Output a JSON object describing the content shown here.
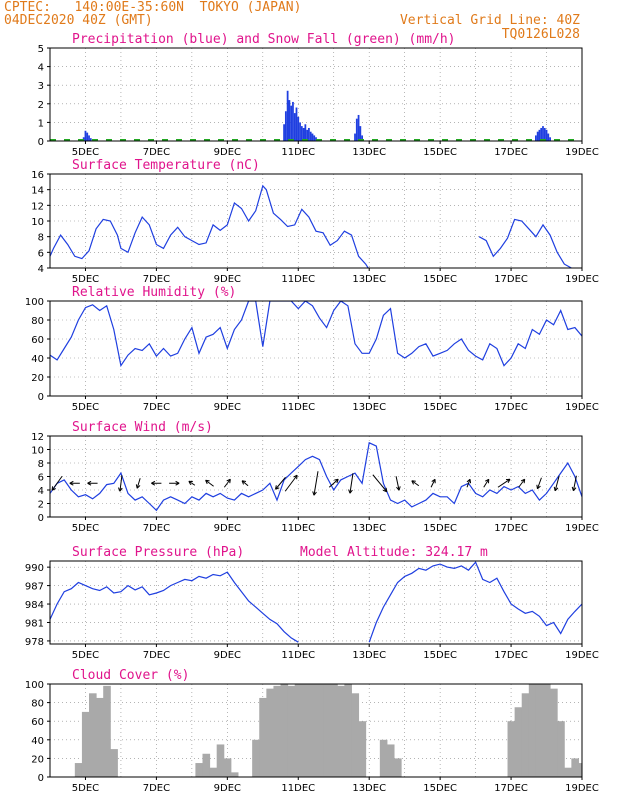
{
  "header": {
    "line1_left": "CPTEC:   140:00E-35:60N  TOKYO (JAPAN)",
    "line2_left": "04DEC2020 40Z (GMT)",
    "line2_right": "Vertical Grid Line: 40Z",
    "line3_right": "TQ0126L028"
  },
  "colors": {
    "header": "#e07a1a",
    "title": "#e0148c",
    "line": "#1f3fe0",
    "snow": "#22a822",
    "cloud": "#a9a9a9"
  },
  "x_ticks": [
    "5DEC",
    "7DEC",
    "9DEC",
    "11DEC",
    "13DEC",
    "15DEC",
    "17DEC",
    "19DEC"
  ],
  "chart_data": [
    {
      "type": "bar",
      "title": "Precipitation (blue) and Snow Fall (green) (mm/h)",
      "ylim": [
        0,
        5
      ],
      "yticks": [
        "0",
        "1",
        "2",
        "3",
        "4",
        "5"
      ],
      "series": [
        {
          "name": "Precipitation",
          "values": [
            {
              "day": 4.95,
              "v": 0.2
            },
            {
              "day": 5.0,
              "v": 0.55
            },
            {
              "day": 5.05,
              "v": 0.45
            },
            {
              "day": 5.1,
              "v": 0.3
            },
            {
              "day": 5.15,
              "v": 0.15
            },
            {
              "day": 10.6,
              "v": 0.9
            },
            {
              "day": 10.65,
              "v": 1.6
            },
            {
              "day": 10.7,
              "v": 2.7
            },
            {
              "day": 10.75,
              "v": 2.2
            },
            {
              "day": 10.8,
              "v": 1.9
            },
            {
              "day": 10.85,
              "v": 2.1
            },
            {
              "day": 10.9,
              "v": 1.5
            },
            {
              "day": 10.95,
              "v": 1.8
            },
            {
              "day": 11.0,
              "v": 1.3
            },
            {
              "day": 11.05,
              "v": 1.0
            },
            {
              "day": 11.1,
              "v": 0.8
            },
            {
              "day": 11.15,
              "v": 0.7
            },
            {
              "day": 11.2,
              "v": 0.9
            },
            {
              "day": 11.25,
              "v": 0.6
            },
            {
              "day": 11.3,
              "v": 0.7
            },
            {
              "day": 11.35,
              "v": 0.5
            },
            {
              "day": 11.4,
              "v": 0.4
            },
            {
              "day": 11.45,
              "v": 0.3
            },
            {
              "day": 11.5,
              "v": 0.2
            },
            {
              "day": 12.6,
              "v": 0.4
            },
            {
              "day": 12.65,
              "v": 1.2
            },
            {
              "day": 12.7,
              "v": 1.4
            },
            {
              "day": 12.75,
              "v": 0.8
            },
            {
              "day": 12.8,
              "v": 0.3
            },
            {
              "day": 17.7,
              "v": 0.3
            },
            {
              "day": 17.75,
              "v": 0.5
            },
            {
              "day": 17.8,
              "v": 0.6
            },
            {
              "day": 17.85,
              "v": 0.7
            },
            {
              "day": 17.9,
              "v": 0.8
            },
            {
              "day": 17.95,
              "v": 0.7
            },
            {
              "day": 18.0,
              "v": 0.6
            },
            {
              "day": 18.05,
              "v": 0.4
            },
            {
              "day": 18.1,
              "v": 0.2
            }
          ]
        },
        {
          "name": "Snow Fall",
          "values": []
        }
      ]
    },
    {
      "type": "line",
      "title": "Surface Temperature (nC)",
      "ylim": [
        4,
        16
      ],
      "yticks": [
        "4",
        "6",
        "8",
        "10",
        "12",
        "14",
        "16"
      ],
      "x": [
        4,
        4.1,
        4.3,
        4.5,
        4.7,
        4.9,
        5.1,
        5.3,
        5.5,
        5.7,
        5.9,
        6.0,
        6.2,
        6.4,
        6.6,
        6.8,
        7.0,
        7.2,
        7.4,
        7.6,
        7.8,
        8.0,
        8.2,
        8.4,
        8.6,
        8.8,
        9.0,
        9.2,
        9.4,
        9.6,
        9.8,
        10.0,
        10.1,
        10.3,
        10.5,
        10.7,
        10.9,
        11.1,
        11.3,
        11.5,
        11.7,
        11.9,
        12.1,
        12.3,
        12.5,
        12.7,
        12.9,
        13.0
      ],
      "values": [
        5.5,
        6.5,
        8.2,
        7.0,
        5.5,
        5.2,
        6.2,
        9.0,
        10.2,
        10.0,
        8.2,
        6.5,
        6.0,
        8.5,
        10.5,
        9.5,
        7.0,
        6.5,
        8.2,
        9.2,
        8.0,
        7.5,
        7.0,
        7.2,
        9.5,
        8.8,
        9.5,
        12.3,
        11.6,
        10.0,
        11.3,
        14.5,
        14.0,
        11.0,
        10.2,
        9.3,
        9.5,
        11.5,
        10.5,
        8.7,
        8.5,
        6.9,
        7.5,
        8.7,
        8.2,
        5.5,
        4.5,
        3.8
      ],
      "segments": [
        {
          "x": [
            16.1,
            16.3,
            16.5,
            16.7,
            16.9,
            17.1,
            17.3,
            17.5,
            17.7,
            17.9,
            18.1,
            18.3,
            18.5,
            18.7
          ],
          "values": [
            8.0,
            7.5,
            5.5,
            6.5,
            7.8,
            10.2,
            10.0,
            9.0,
            8.0,
            9.5,
            8.2,
            6.0,
            4.5,
            4.0
          ]
        }
      ]
    },
    {
      "type": "line",
      "title": "Relative Humidity (%)",
      "ylim": [
        0,
        100
      ],
      "yticks": [
        "0",
        "20",
        "40",
        "60",
        "80",
        "100"
      ],
      "x": [
        4,
        4.2,
        4.4,
        4.6,
        4.8,
        5.0,
        5.2,
        5.4,
        5.6,
        5.8,
        6.0,
        6.2,
        6.4,
        6.6,
        6.8,
        7.0,
        7.2,
        7.4,
        7.6,
        7.8,
        8.0,
        8.2,
        8.4,
        8.6,
        8.8,
        9.0,
        9.2,
        9.4,
        9.6,
        9.8,
        10.0,
        10.2,
        10.4,
        10.6,
        10.8,
        11.0,
        11.2,
        11.4,
        11.6,
        11.8,
        12.0,
        12.2,
        12.4,
        12.6,
        12.8,
        13.0,
        13.2,
        13.4,
        13.6,
        13.8,
        14.0,
        14.2,
        14.4,
        14.6,
        14.8,
        15.0,
        15.2,
        15.4,
        15.6,
        15.8,
        16.0,
        16.2,
        16.4,
        16.6,
        16.8,
        17.0,
        17.2,
        17.4,
        17.6,
        17.8,
        18.0,
        18.2,
        18.4,
        18.6,
        18.8,
        19.0
      ],
      "values": [
        43,
        38,
        50,
        62,
        80,
        93,
        96,
        90,
        95,
        70,
        32,
        43,
        50,
        48,
        55,
        42,
        50,
        42,
        45,
        60,
        72,
        45,
        62,
        65,
        72,
        50,
        70,
        80,
        100,
        100,
        52,
        100,
        100,
        100,
        100,
        92,
        100,
        95,
        82,
        72,
        90,
        100,
        95,
        55,
        45,
        45,
        60,
        85,
        92,
        45,
        40,
        45,
        52,
        55,
        42,
        45,
        48,
        55,
        60,
        48,
        42,
        38,
        55,
        50,
        32,
        40,
        55,
        50,
        70,
        65,
        80,
        75,
        90,
        70,
        72,
        63
      ]
    },
    {
      "type": "line",
      "title": "Surface Wind (m/s)",
      "ylim": [
        0,
        12
      ],
      "yticks": [
        "0",
        "2",
        "4",
        "6",
        "8",
        "10",
        "12"
      ],
      "x": [
        4,
        4.2,
        4.4,
        4.6,
        4.8,
        5.0,
        5.2,
        5.4,
        5.6,
        5.8,
        6.0,
        6.2,
        6.4,
        6.6,
        6.8,
        7.0,
        7.2,
        7.4,
        7.6,
        7.8,
        8.0,
        8.2,
        8.4,
        8.6,
        8.8,
        9.0,
        9.2,
        9.4,
        9.6,
        9.8,
        10.0,
        10.2,
        10.4,
        10.6,
        10.8,
        11.0,
        11.2,
        11.4,
        11.6,
        11.8,
        12.0,
        12.2,
        12.4,
        12.6,
        12.8,
        13.0,
        13.2,
        13.4,
        13.6,
        13.8,
        14.0,
        14.2,
        14.4,
        14.6,
        14.8,
        15.0,
        15.2,
        15.4,
        15.6,
        15.8,
        16.0,
        16.2,
        16.4,
        16.6,
        16.8,
        17.0,
        17.2,
        17.4,
        17.6,
        17.8,
        18.0,
        18.2,
        18.4,
        18.6,
        18.8,
        19.0
      ],
      "values": [
        3.5,
        5.0,
        5.5,
        4.0,
        3.0,
        3.3,
        2.7,
        3.5,
        4.8,
        5.0,
        6.5,
        3.5,
        2.5,
        3.0,
        2.0,
        1.0,
        2.5,
        3.0,
        2.5,
        2.0,
        3.0,
        2.5,
        3.5,
        3.0,
        3.5,
        2.8,
        2.5,
        3.5,
        3.0,
        3.5,
        4.0,
        5.0,
        2.5,
        5.5,
        6.5,
        7.5,
        8.5,
        9.0,
        8.5,
        6.0,
        4.0,
        5.5,
        6.0,
        6.5,
        5.0,
        11.0,
        10.5,
        5.0,
        2.5,
        2.0,
        2.5,
        1.5,
        2.0,
        2.5,
        3.5,
        3.0,
        3.0,
        2.0,
        4.5,
        5.0,
        3.5,
        3.0,
        4.0,
        3.5,
        4.5,
        4.0,
        4.5,
        3.5,
        4.0,
        2.5,
        3.5,
        5.0,
        6.5,
        8.0,
        6.0,
        3.0
      ],
      "arrows": [
        {
          "day": 4.2,
          "dx": -1,
          "dy": 1.4
        },
        {
          "day": 4.7,
          "dx": -1,
          "dy": 0
        },
        {
          "day": 5.2,
          "dx": -1,
          "dy": 0
        },
        {
          "day": 6.0,
          "dx": -0.2,
          "dy": 1.6
        },
        {
          "day": 6.5,
          "dx": -0.3,
          "dy": 1.0
        },
        {
          "day": 7.0,
          "dx": -1,
          "dy": 0
        },
        {
          "day": 7.5,
          "dx": 1,
          "dy": 0
        },
        {
          "day": 8.0,
          "dx": -0.6,
          "dy": -0.4
        },
        {
          "day": 8.5,
          "dx": -0.8,
          "dy": -0.6
        },
        {
          "day": 9.0,
          "dx": 0.6,
          "dy": -0.8
        },
        {
          "day": 9.5,
          "dx": -0.6,
          "dy": -0.5
        },
        {
          "day": 10.5,
          "dx": -1,
          "dy": 1.2
        },
        {
          "day": 10.8,
          "dx": 1.2,
          "dy": -1.6
        },
        {
          "day": 11.5,
          "dx": -0.4,
          "dy": 2.4
        },
        {
          "day": 12.0,
          "dx": 0.9,
          "dy": -0.8
        },
        {
          "day": 12.5,
          "dx": -0.3,
          "dy": 2.0
        },
        {
          "day": 13.3,
          "dx": 1.4,
          "dy": 1.7
        },
        {
          "day": 13.8,
          "dx": 0.3,
          "dy": 1.4
        },
        {
          "day": 14.3,
          "dx": -0.7,
          "dy": -0.5
        },
        {
          "day": 14.8,
          "dx": 0.4,
          "dy": -0.8
        },
        {
          "day": 15.8,
          "dx": 0.3,
          "dy": -0.8
        },
        {
          "day": 16.3,
          "dx": 0.5,
          "dy": -0.8
        },
        {
          "day": 16.8,
          "dx": 1.2,
          "dy": -0.8
        },
        {
          "day": 17.3,
          "dx": 0.6,
          "dy": -0.8
        },
        {
          "day": 17.8,
          "dx": -0.4,
          "dy": 1.1
        },
        {
          "day": 18.3,
          "dx": -0.4,
          "dy": 1.5
        },
        {
          "day": 18.8,
          "dx": -0.3,
          "dy": 1.5
        }
      ]
    },
    {
      "type": "line",
      "title": "Surface Pressure (hPa)",
      "annotation": "Model Altitude: 324.17 m",
      "ylim": [
        977.5,
        991
      ],
      "yticks": [
        "978",
        "981",
        "984",
        "987",
        "990"
      ],
      "x": [
        4,
        4.2,
        4.4,
        4.6,
        4.8,
        5.0,
        5.2,
        5.4,
        5.6,
        5.8,
        6.0,
        6.2,
        6.4,
        6.6,
        6.8,
        7.0,
        7.2,
        7.4,
        7.6,
        7.8,
        8.0,
        8.2,
        8.4,
        8.6,
        8.8,
        9.0,
        9.2,
        9.4,
        9.6,
        9.8,
        10.0,
        10.2,
        10.4,
        10.6,
        10.8,
        11.0
      ],
      "values": [
        981.5,
        984,
        986,
        986.5,
        987.5,
        987,
        986.5,
        986.2,
        986.8,
        985.8,
        986.0,
        987,
        986.3,
        986.8,
        985.5,
        985.8,
        986.2,
        987,
        987.5,
        988.0,
        987.8,
        988.5,
        988.2,
        988.8,
        988.6,
        989.2,
        987.5,
        986,
        984.5,
        983.5,
        982.5,
        981.5,
        980.8,
        979.5,
        978.5,
        977.8
      ],
      "segments": [
        {
          "x": [
            13.0,
            13.2,
            13.4,
            13.6,
            13.8,
            14.0,
            14.2,
            14.4,
            14.6,
            14.8,
            15.0,
            15.2,
            15.4,
            15.6,
            15.8,
            16.0,
            16.2,
            16.4,
            16.6,
            16.8,
            17.0,
            17.2,
            17.4,
            17.6,
            17.8,
            18.0,
            18.2,
            18.4,
            18.6,
            18.8,
            19.0
          ],
          "values": [
            977.8,
            981,
            983.5,
            985.5,
            987.5,
            988.5,
            989.0,
            989.8,
            989.5,
            990.2,
            990.5,
            990.0,
            989.8,
            990.2,
            989.5,
            990.8,
            988.0,
            987.5,
            988.2,
            986.0,
            984.0,
            983.2,
            982.5,
            982.8,
            982.0,
            980.5,
            981.0,
            979.2,
            981.5,
            982.8,
            984.0
          ]
        }
      ]
    },
    {
      "type": "area",
      "title": "Cloud Cover (%)",
      "ylim": [
        0,
        100
      ],
      "yticks": [
        "0",
        "20",
        "40",
        "60",
        "80",
        "100"
      ],
      "x": [
        4.0,
        4.2,
        4.4,
        4.6,
        4.8,
        5.0,
        5.2,
        5.4,
        5.6,
        5.8,
        6.0,
        6.2,
        6.4,
        6.6,
        6.8,
        7.0,
        7.2,
        7.4,
        7.6,
        7.8,
        8.0,
        8.2,
        8.4,
        8.6,
        8.8,
        9.0,
        9.2,
        9.4,
        9.6,
        9.8,
        10.0,
        10.2,
        10.4,
        10.6,
        10.8,
        11.0,
        11.2,
        11.4,
        11.6,
        11.8,
        12.0,
        12.2,
        12.4,
        12.6,
        12.8,
        13.0,
        13.2,
        13.4,
        13.6,
        13.8,
        14.0,
        14.2,
        14.4,
        14.6,
        14.8,
        15.0,
        15.2,
        15.4,
        15.6,
        15.8,
        16.0,
        16.2,
        16.4,
        16.6,
        16.8,
        17.0,
        17.2,
        17.4,
        17.6,
        17.8,
        18.0,
        18.2,
        18.4,
        18.6,
        18.8,
        19.0
      ],
      "values": [
        0,
        0,
        0,
        0,
        15,
        70,
        90,
        85,
        98,
        30,
        0,
        0,
        0,
        0,
        0,
        0,
        0,
        0,
        0,
        0,
        0,
        15,
        25,
        10,
        35,
        20,
        5,
        0,
        0,
        40,
        85,
        95,
        98,
        100,
        98,
        100,
        100,
        100,
        100,
        100,
        100,
        98,
        100,
        90,
        60,
        0,
        0,
        40,
        35,
        20,
        0,
        0,
        0,
        0,
        0,
        0,
        0,
        0,
        0,
        0,
        0,
        0,
        0,
        0,
        0,
        60,
        75,
        90,
        100,
        100,
        100,
        95,
        60,
        10,
        20,
        15
      ]
    }
  ]
}
